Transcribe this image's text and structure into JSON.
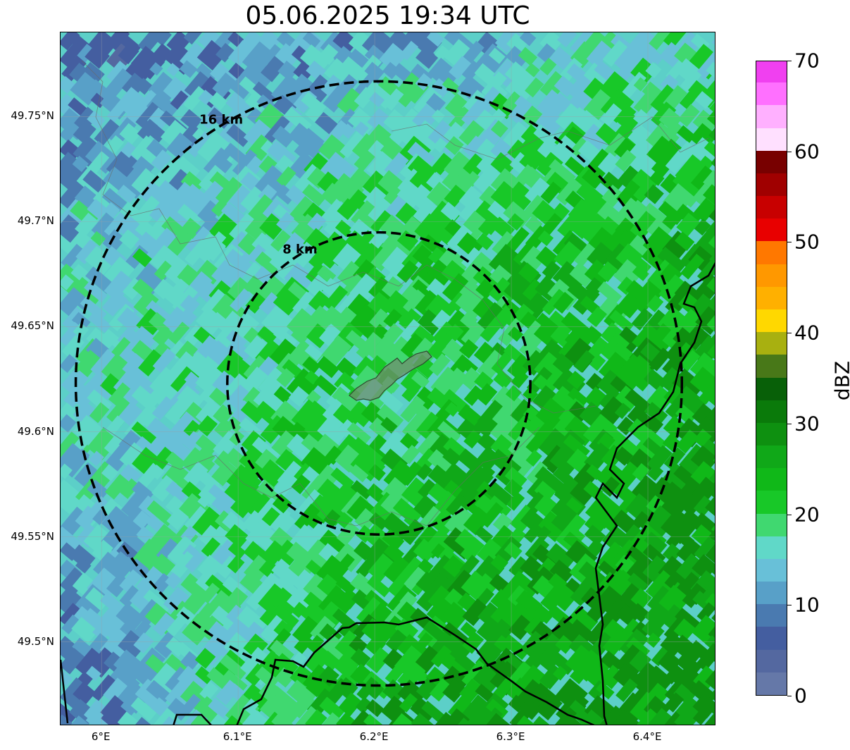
{
  "title": "05.06.2025 19:34 UTC",
  "map": {
    "lon_range": [
      5.97,
      6.45
    ],
    "lat_range": [
      49.46,
      49.79
    ],
    "center": {
      "lon": 6.203,
      "lat": 49.623
    },
    "rings": [
      {
        "radius_km": 8,
        "label": "8 km"
      },
      {
        "radius_km": 16,
        "label": "16 km"
      }
    ],
    "lat_ticks": [
      {
        "value": 49.5,
        "label": "49.5°N"
      },
      {
        "value": 49.55,
        "label": "49.55°N"
      },
      {
        "value": 49.6,
        "label": "49.6°N"
      },
      {
        "value": 49.65,
        "label": "49.65°N"
      },
      {
        "value": 49.7,
        "label": "49.7°N"
      },
      {
        "value": 49.75,
        "label": "49.75°N"
      }
    ],
    "lon_ticks": [
      {
        "value": 6.0,
        "label": "6°E"
      },
      {
        "value": 6.1,
        "label": "6.1°E"
      },
      {
        "value": 6.2,
        "label": "6.2°E"
      },
      {
        "value": 6.3,
        "label": "6.3°E"
      },
      {
        "value": 6.4,
        "label": "6.4°E"
      }
    ],
    "colors": {
      "ring": "#000000",
      "grid": "#9aa0a6",
      "border": "#000000",
      "city_fill": "#5f8a6a"
    }
  },
  "colorbar": {
    "label": "dBZ",
    "min": 0,
    "max": 70,
    "ticks": [
      {
        "value": 0,
        "label": "0"
      },
      {
        "value": 10,
        "label": "10"
      },
      {
        "value": 20,
        "label": "20"
      },
      {
        "value": 30,
        "label": "30"
      },
      {
        "value": 40,
        "label": "40"
      },
      {
        "value": 50,
        "label": "50"
      },
      {
        "value": 60,
        "label": "60"
      },
      {
        "value": 70,
        "label": "70"
      }
    ],
    "colors": [
      "#6578a8",
      "#5468a0",
      "#445ea0",
      "#4a7ab0",
      "#58a0c8",
      "#68c0d8",
      "#60d8c8",
      "#40d870",
      "#18c828",
      "#10b818",
      "#10a818",
      "#0e9010",
      "#0a7a0a",
      "#086008",
      "#487818",
      "#a8b010",
      "#ffd800",
      "#ffb000",
      "#ff9800",
      "#ff7800",
      "#e80000",
      "#c80000",
      "#a00000",
      "#780000",
      "#ffe0ff",
      "#ffb0ff",
      "#ff70ff",
      "#f040f0"
    ]
  }
}
